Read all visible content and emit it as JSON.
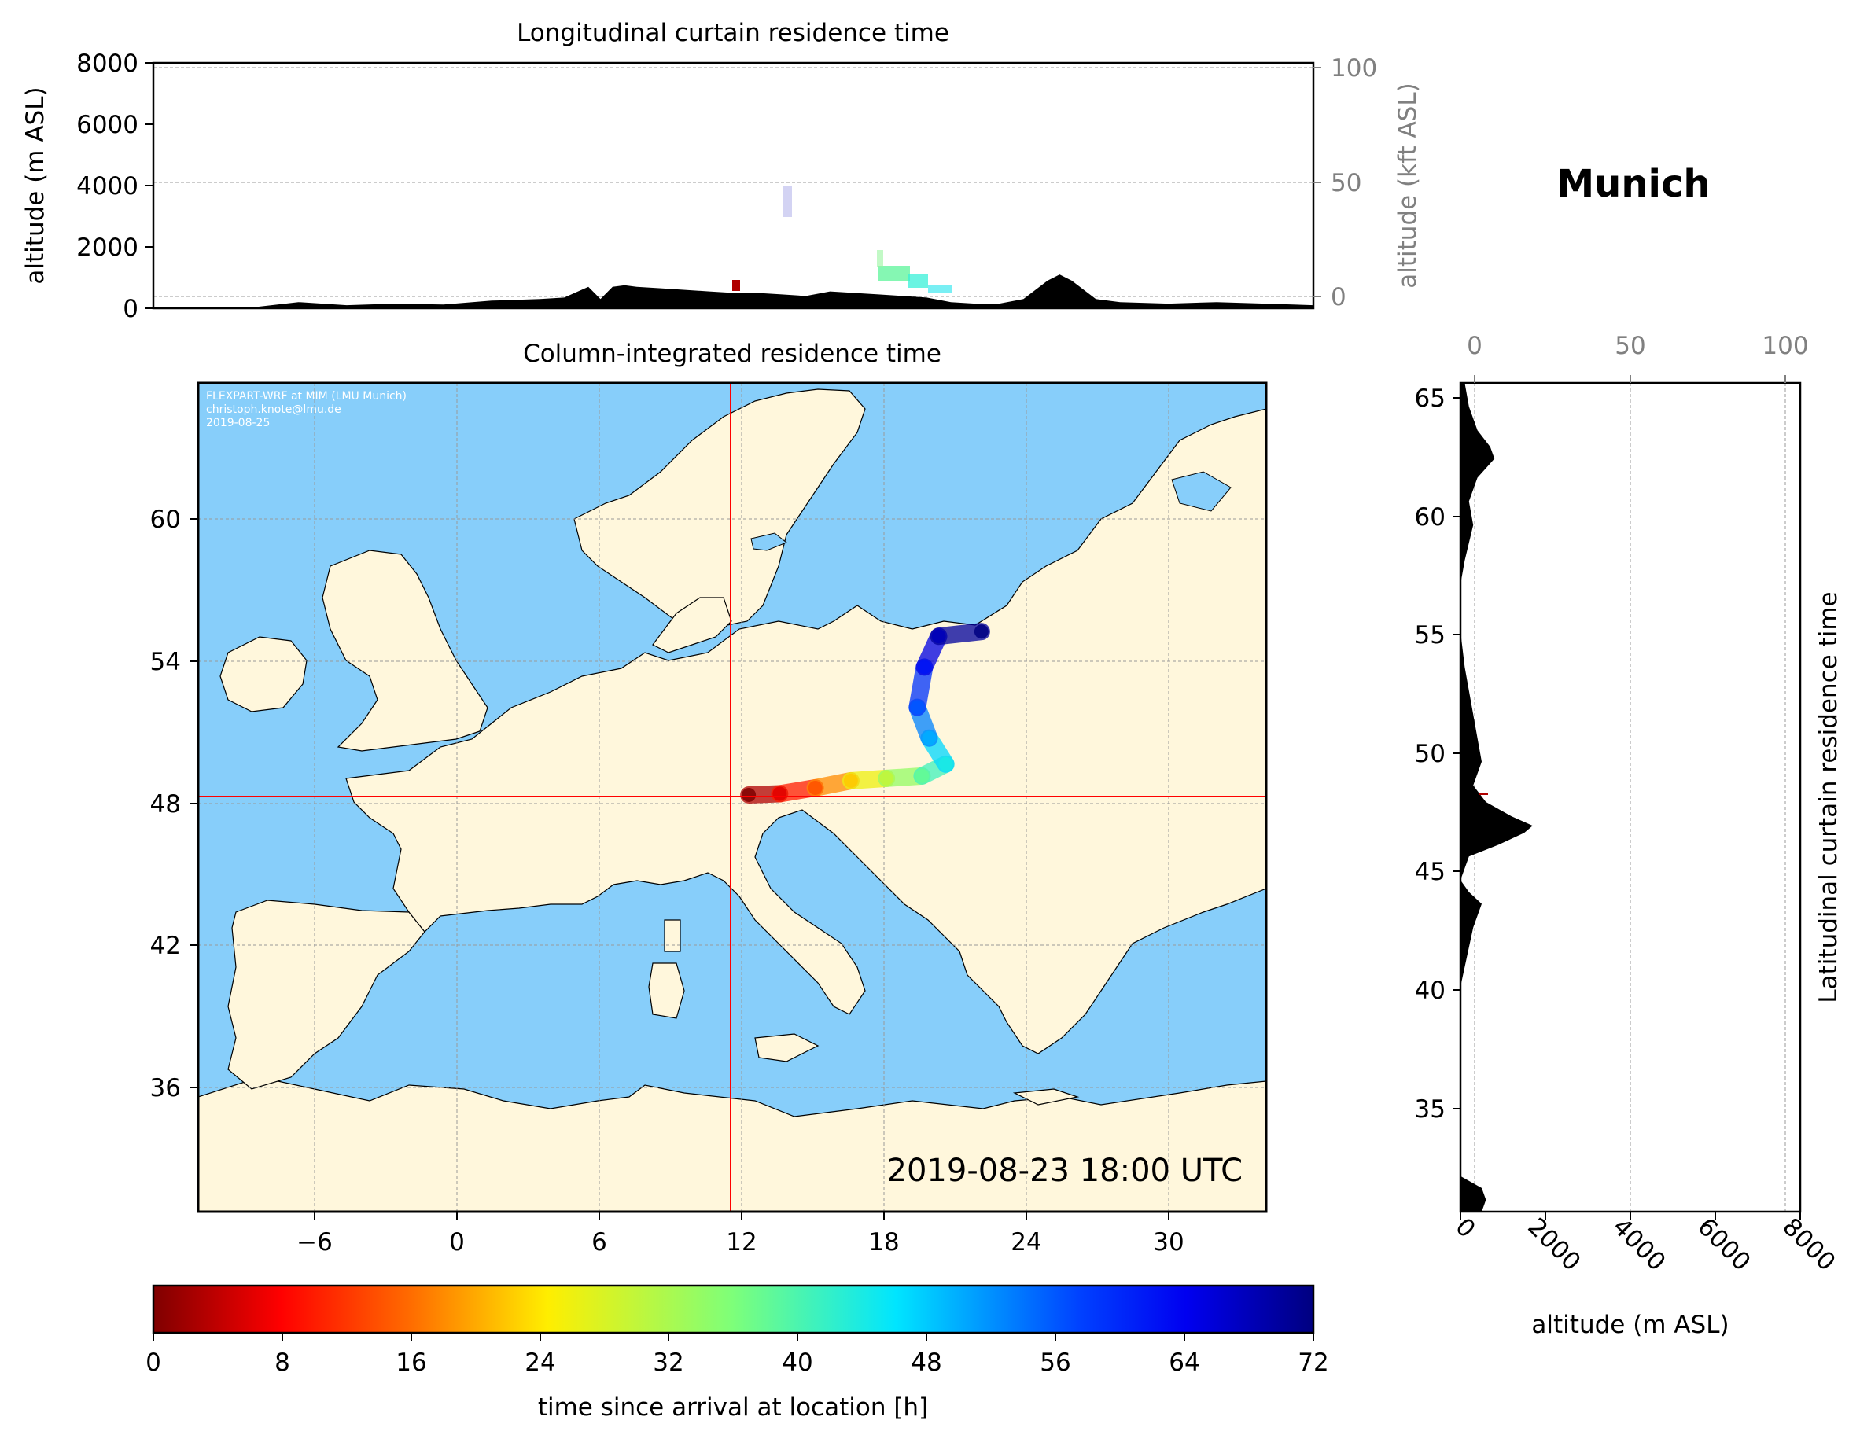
{
  "location_title": "Munich",
  "colors": {
    "ocean": "#87cefa",
    "land": "#fff7dc",
    "crosshair": "#ff0000",
    "terrain": "#000000",
    "secondary_axis": "#808080"
  },
  "chart_data": [
    {
      "id": "longitudinal",
      "type": "area",
      "title": "Longitudinal curtain residence time",
      "ylabel": "altitude (m ASL)",
      "ylabel_right": "altitude (kft ASL)",
      "ylim": [
        0,
        8000
      ],
      "yticks": [
        "0",
        "2000",
        "4000",
        "6000",
        "8000"
      ],
      "ylim_right": [
        0,
        100
      ],
      "yticks_right": [
        "0",
        "50",
        "100"
      ],
      "xlim": [
        -12,
        36
      ],
      "terrain_profile": {
        "lon": [
          -12,
          -8,
          -6,
          -4,
          -2,
          0,
          2,
          4,
          5,
          6,
          6.5,
          7,
          7.5,
          8,
          9,
          10,
          11,
          12,
          13,
          14,
          15,
          16,
          17,
          18,
          19,
          20,
          21,
          22,
          23,
          24,
          25,
          25.5,
          26,
          27,
          28,
          30,
          32,
          34,
          36
        ],
        "alt_m": [
          0,
          20,
          200,
          100,
          150,
          120,
          250,
          300,
          350,
          700,
          300,
          700,
          750,
          700,
          650,
          600,
          550,
          500,
          500,
          450,
          400,
          550,
          500,
          450,
          400,
          350,
          200,
          150,
          150,
          300,
          900,
          1100,
          900,
          300,
          200,
          150,
          200,
          150,
          100
        ]
      }
    },
    {
      "id": "map",
      "type": "scatter",
      "title": "Column-integrated residence time",
      "xticks": [
        "−6",
        "0",
        "6",
        "12",
        "18",
        "24",
        "30"
      ],
      "yticks": [
        "36",
        "42",
        "48",
        "54",
        "60"
      ],
      "xlim": [
        -11,
        34
      ],
      "ylim": [
        30.5,
        65.5
      ],
      "release_lon": 11.6,
      "release_lat": 48.1,
      "credit": [
        "FLEXPART-WRF at MIM (LMU Munich)",
        "christoph.knote@lmu.de",
        "2019-08-25"
      ],
      "timestamp": "2019-08-23 18:00 UTC",
      "trajectory": [
        {
          "lon": 12.2,
          "lat": 48.1,
          "hours": 0
        },
        {
          "lon": 13.5,
          "lat": 48.15,
          "hours": 6
        },
        {
          "lon": 15.0,
          "lat": 48.4,
          "hours": 14
        },
        {
          "lon": 16.5,
          "lat": 48.7,
          "hours": 22
        },
        {
          "lon": 18.0,
          "lat": 48.8,
          "hours": 30
        },
        {
          "lon": 19.5,
          "lat": 48.9,
          "hours": 38
        },
        {
          "lon": 20.5,
          "lat": 49.4,
          "hours": 44
        },
        {
          "lon": 19.8,
          "lat": 50.5,
          "hours": 50
        },
        {
          "lon": 19.3,
          "lat": 51.8,
          "hours": 56
        },
        {
          "lon": 19.6,
          "lat": 53.5,
          "hours": 62
        },
        {
          "lon": 20.2,
          "lat": 54.8,
          "hours": 68
        },
        {
          "lon": 22.0,
          "lat": 55.0,
          "hours": 72
        }
      ]
    },
    {
      "id": "latitudinal",
      "type": "area",
      "ylabel": "Latitudinal curtain residence time",
      "xlabel": "altitude (m ASL)",
      "xlim": [
        0,
        8000
      ],
      "xticks": [
        "0",
        "2000",
        "4000",
        "6000",
        "8000"
      ],
      "xlim_top": [
        0,
        100
      ],
      "xticks_top": [
        "0",
        "50",
        "100"
      ],
      "ylim": [
        30.5,
        65.5
      ],
      "yticks": [
        "35",
        "40",
        "45",
        "50",
        "55",
        "60",
        "65"
      ],
      "terrain_profile": {
        "lat": [
          30.5,
          31.0,
          31.5,
          32.0,
          33.0,
          36.0,
          40.0,
          42.5,
          43.5,
          44.0,
          44.5,
          45.5,
          46.0,
          46.5,
          46.8,
          47.2,
          47.8,
          48.5,
          49.5,
          50.5,
          51.5,
          52.5,
          53.5,
          55.0,
          57.0,
          58.0,
          59.5,
          60.5,
          61.5,
          62.3,
          62.8,
          63.5,
          64.5,
          65.5
        ],
        "alt_m": [
          500,
          600,
          500,
          0,
          0,
          0,
          0,
          300,
          500,
          200,
          0,
          200,
          900,
          1500,
          1700,
          1200,
          600,
          300,
          500,
          400,
          300,
          200,
          100,
          0,
          0,
          100,
          300,
          200,
          400,
          800,
          700,
          400,
          200,
          100
        ]
      }
    },
    {
      "id": "colorbar",
      "type": "heatmap",
      "xlabel": "time since arrival at location [h]",
      "range": [
        0,
        72
      ],
      "ticks": [
        "0",
        "8",
        "16",
        "24",
        "32",
        "40",
        "48",
        "56",
        "64",
        "72"
      ]
    }
  ]
}
